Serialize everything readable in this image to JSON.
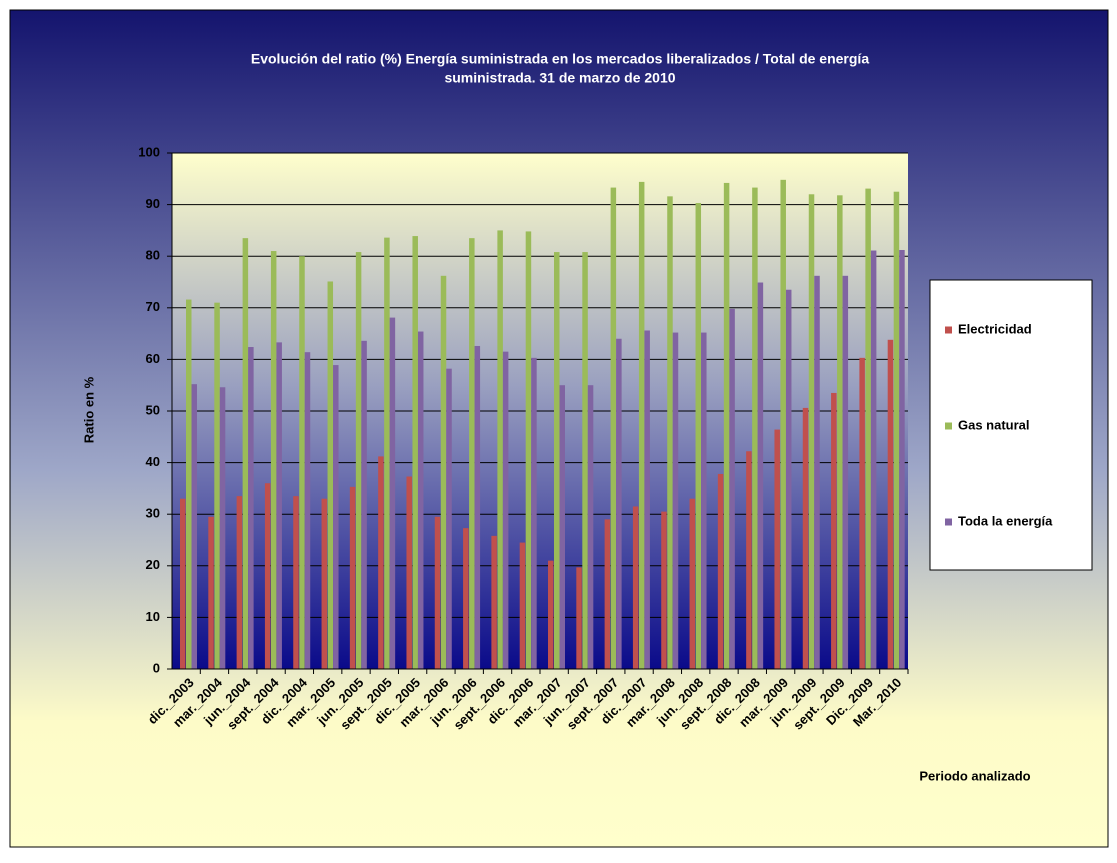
{
  "chart_data": {
    "type": "bar",
    "title": [
      "Evolución del ratio (%) Energía suministrada en los mercados liberalizados / Total de energía",
      "suministrada.  31 de marzo de 2010"
    ],
    "x_label": "Periodo analizado",
    "y_label": "Ratio en %",
    "categories": [
      "dic._2003",
      "mar._2004",
      "jun._2004",
      "sept._2004",
      "dic._2004",
      "mar._2005",
      "jun._2005",
      "sept._2005",
      "dic._2005",
      "mar._2006",
      "jun._2006",
      "sept._2006",
      "dic._2006",
      "mar._2007",
      "jun._2007",
      "sept._2007",
      "dic._2007",
      "mar._2008",
      "jun._2008",
      "sept._2008",
      "dic._2008",
      "mar._2009",
      "jun._2009",
      "sept._2009",
      "Dic._2009",
      "Mar._2010"
    ],
    "series": [
      {
        "name": "Electricidad",
        "color": "#c0504d",
        "values": [
          33,
          29.5,
          33.5,
          36,
          33.5,
          33,
          35.3,
          41.2,
          37.3,
          29.5,
          27.3,
          25.8,
          24.5,
          21,
          19.7,
          29,
          31.5,
          30.5,
          33,
          37.8,
          42.2,
          46.4,
          50.6,
          53.5,
          60.3,
          63.8
        ]
      },
      {
        "name": "Gas natural",
        "color": "#9bbb59",
        "values": [
          71.6,
          71,
          83.5,
          81,
          80,
          75.1,
          80.8,
          83.6,
          83.9,
          76.2,
          83.5,
          85,
          84.8,
          80.8,
          80.8,
          93.3,
          94.4,
          91.6,
          90.3,
          94.2,
          93.3,
          94.8,
          92,
          91.8,
          93.1,
          92.5
        ]
      },
      {
        "name": "Toda la energía",
        "color": "#8064a2",
        "values": [
          55.2,
          54.6,
          62.4,
          63.3,
          61.4,
          58.9,
          63.6,
          68.1,
          65.4,
          58.2,
          62.6,
          61.5,
          60.3,
          55,
          55,
          64,
          65.6,
          65.2,
          65.2,
          69.8,
          74.9,
          73.5,
          76.2,
          76.2,
          81.1,
          81.2
        ]
      }
    ],
    "ylim": [
      0,
      100
    ],
    "yticks": [
      0,
      10,
      20,
      30,
      40,
      50,
      60,
      70,
      80,
      90,
      100
    ],
    "grid": true,
    "legend": "right"
  }
}
